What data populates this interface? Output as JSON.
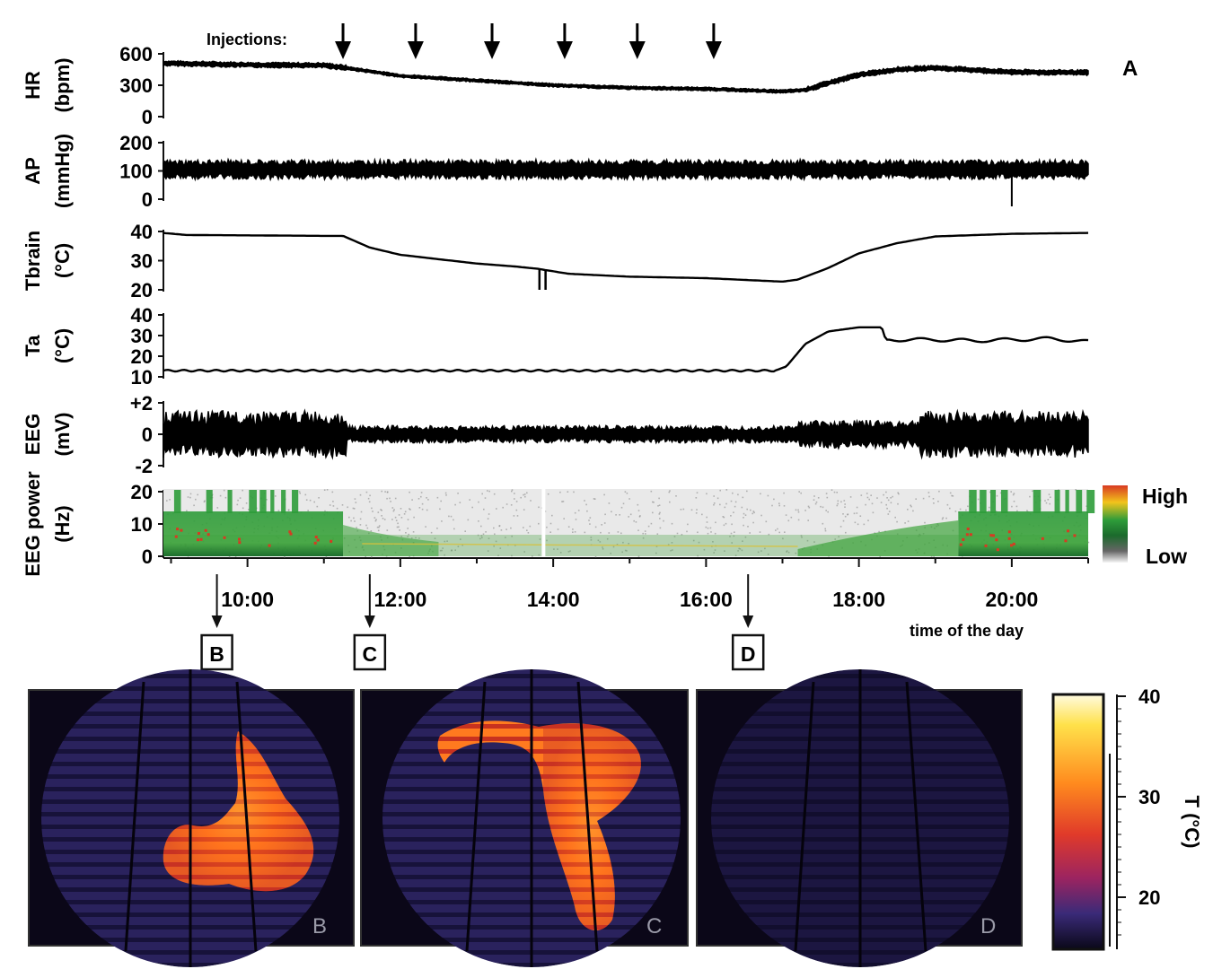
{
  "panel_letter": "A",
  "injections_label": "Injections:",
  "time_axis": {
    "ticks": [
      "10:00",
      "12:00",
      "14:00",
      "16:00",
      "18:00",
      "20:00"
    ],
    "label": "time of the day"
  },
  "snapshot_markers": [
    "B",
    "C",
    "D"
  ],
  "spectrogram_legend": {
    "high": "High",
    "low": "Low"
  },
  "thermal_colorbar": {
    "ticks": [
      "40",
      "30",
      "20"
    ],
    "label": "T (°C)"
  },
  "chart_data": {
    "type": "line",
    "x_unit": "time of day (hours)",
    "x_range": [
      8.9,
      21.0
    ],
    "injection_times": [
      11.25,
      12.2,
      13.2,
      14.15,
      15.1,
      16.1
    ],
    "snapshot_times": {
      "B": 9.6,
      "C": 11.6,
      "D": 16.55
    },
    "panels": [
      {
        "id": "hr",
        "name": "HR",
        "unit": "(bpm)",
        "ylim": [
          0,
          600
        ],
        "tick_labels": [
          "600",
          "300",
          "0"
        ],
        "series": [
          {
            "x": [
              8.9,
              10,
              11,
              11.25,
              12,
              13,
              14,
              15,
              16,
              17,
              17.3,
              17.6,
              18,
              18.5,
              19,
              19.5,
              20,
              21
            ],
            "y": [
              510,
              495,
              490,
              470,
              390,
              345,
              300,
              275,
              265,
              240,
              255,
              320,
              400,
              450,
              465,
              445,
              425,
              420
            ]
          }
        ]
      },
      {
        "id": "ap",
        "name": "AP",
        "unit": "(mmHg)",
        "ylim": [
          0,
          200
        ],
        "tick_labels": [
          "200",
          "100",
          "0"
        ],
        "series": [
          {
            "x": [
              8.9,
              21
            ],
            "y": [
              105,
              105
            ]
          }
        ]
      },
      {
        "id": "tbrain",
        "name": "Tbrain",
        "unit": "(°C)",
        "ylim": [
          20,
          40
        ],
        "tick_labels": [
          "40",
          "30",
          "20"
        ],
        "series": [
          {
            "x": [
              8.9,
              9.2,
              11,
              11.25,
              11.6,
              12,
              12.5,
              13,
              13.5,
              13.8,
              14.2,
              15,
              16,
              17,
              17.2,
              17.6,
              18,
              18.5,
              19,
              20,
              21
            ],
            "y": [
              39.5,
              38.8,
              38.5,
              38.5,
              34.5,
              32,
              30.5,
              29,
              28,
              27.2,
              25.5,
              24.5,
              24,
              22.8,
              23.5,
              27.5,
              32.5,
              36,
              38.3,
              39.2,
              39.5
            ]
          }
        ]
      },
      {
        "id": "ta",
        "name": "Ta",
        "unit": "(°C)",
        "ylim": [
          10,
          40
        ],
        "tick_labels": [
          "40",
          "30",
          "20",
          "10"
        ],
        "series": [
          {
            "x": [
              8.9,
              16.9,
              17.05,
              17.3,
              17.6,
              18,
              18.3,
              18.35,
              18.5,
              19,
              19.5,
              20,
              20.5,
              21
            ],
            "y": [
              13,
              13,
              15,
              26,
              32,
              34,
              34,
              28,
              28,
              28,
              27.5,
              28,
              28.5,
              27
            ]
          }
        ]
      },
      {
        "id": "eeg",
        "name": "EEG",
        "unit": "(mV)",
        "ylim": [
          -2,
          2
        ],
        "tick_labels": [
          "+2",
          "0",
          "-2"
        ],
        "series": [
          {
            "x": [
              8.9,
              21
            ],
            "y": [
              0,
              0
            ]
          }
        ]
      },
      {
        "id": "eeg_power",
        "type": "heatmap",
        "name": "EEG power",
        "unit": "(Hz)",
        "ylim": [
          0,
          20
        ],
        "tick_labels": [
          "20",
          "10",
          "0"
        ]
      }
    ]
  },
  "colors": {
    "trace": "#000000",
    "spectro_green": "#2e9c3a",
    "spectro_red": "#d83a22",
    "thermal_dark": "#0e0a22",
    "thermal_purple": "#3a2a78",
    "thermal_orange": "#ff6a1a",
    "thermal_yellow": "#ffe14a"
  },
  "thermal_images": [
    {
      "label": "B"
    },
    {
      "label": "C"
    },
    {
      "label": "D"
    }
  ]
}
